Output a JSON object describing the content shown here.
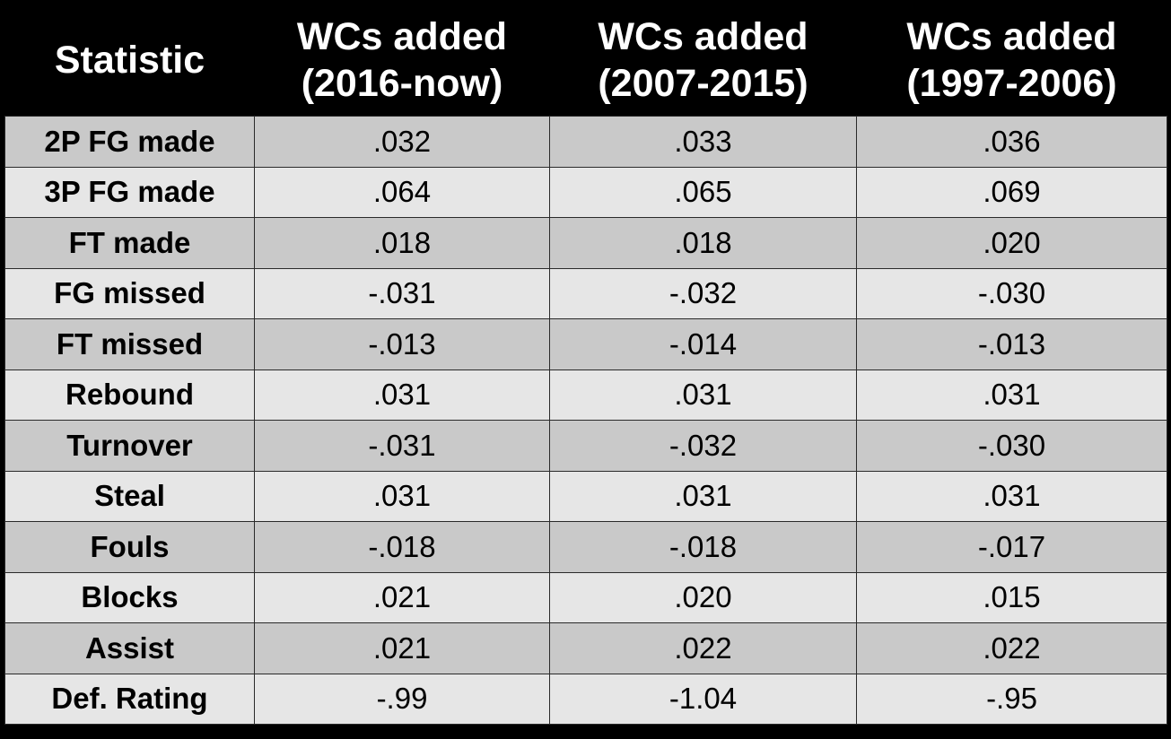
{
  "table": {
    "headers": [
      [
        "Statistic"
      ],
      [
        "WCs added",
        "(2016-now)"
      ],
      [
        "WCs added",
        "(2007-2015)"
      ],
      [
        "WCs added",
        "(1997-2006)"
      ]
    ],
    "rows": [
      {
        "stat": "2P FG made",
        "v2016": ".032",
        "v2007": ".033",
        "v1997": ".036"
      },
      {
        "stat": "3P FG made",
        "v2016": ".064",
        "v2007": ".065",
        "v1997": ".069"
      },
      {
        "stat": "FT made",
        "v2016": ".018",
        "v2007": ".018",
        "v1997": ".020"
      },
      {
        "stat": "FG missed",
        "v2016": "-.031",
        "v2007": "-.032",
        "v1997": "-.030"
      },
      {
        "stat": "FT missed",
        "v2016": "-.013",
        "v2007": "-.014",
        "v1997": "-.013"
      },
      {
        "stat": "Rebound",
        "v2016": ".031",
        "v2007": ".031",
        "v1997": ".031"
      },
      {
        "stat": "Turnover",
        "v2016": "-.031",
        "v2007": "-.032",
        "v1997": "-.030"
      },
      {
        "stat": "Steal",
        "v2016": ".031",
        "v2007": ".031",
        "v1997": ".031"
      },
      {
        "stat": "Fouls",
        "v2016": "-.018",
        "v2007": "-.018",
        "v1997": "-.017"
      },
      {
        "stat": "Blocks",
        "v2016": ".021",
        "v2007": ".020",
        "v1997": ".015"
      },
      {
        "stat": "Assist",
        "v2016": ".021",
        "v2007": ".022",
        "v1997": ".022"
      },
      {
        "stat": "Def. Rating",
        "v2016": "-.99",
        "v2007": "-1.04",
        "v1997": "-.95"
      }
    ]
  },
  "colors": {
    "header_bg": "#000000",
    "header_text": "#ffffff",
    "row_dark": "#c9c9c9",
    "row_light": "#e6e6e6",
    "grid": "#2a2a2a"
  }
}
